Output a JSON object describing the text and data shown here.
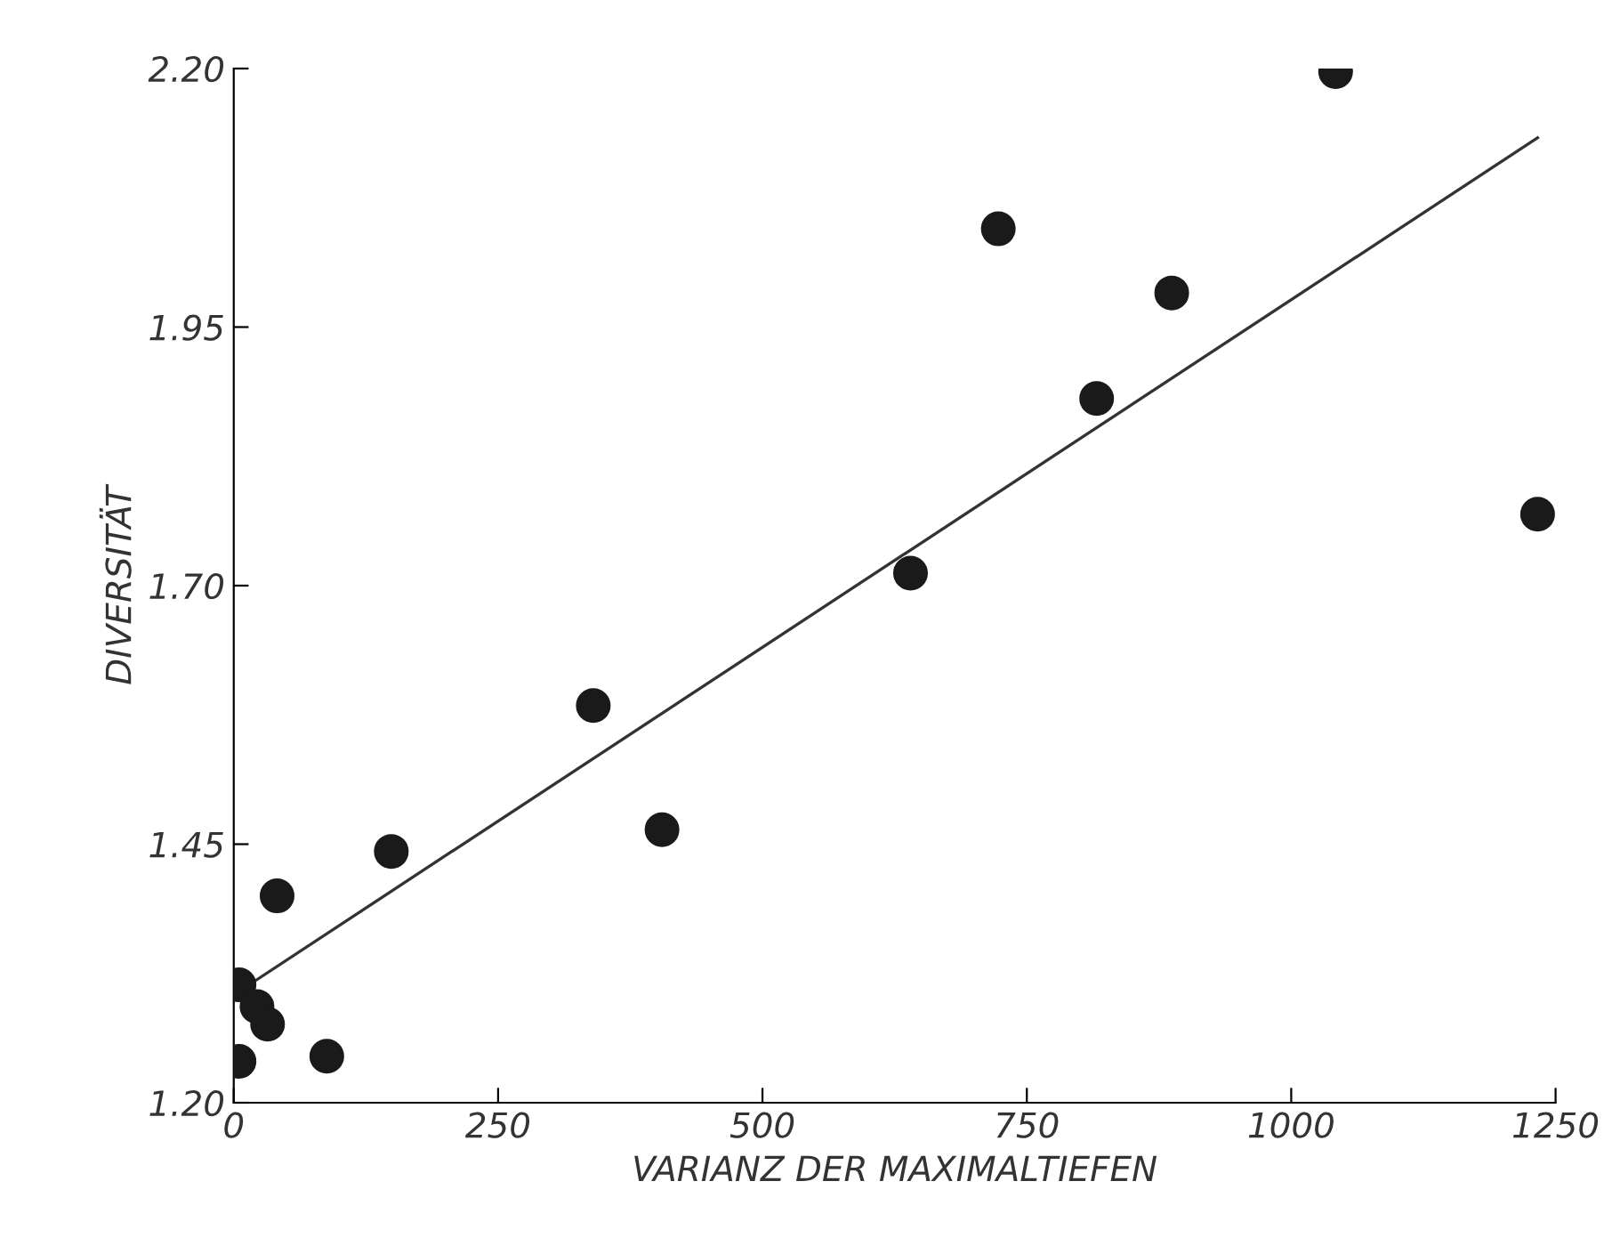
{
  "chart_data": {
    "type": "scatter",
    "xlabel": "VARIANZ DER MAXIMALTIEFEN",
    "ylabel": "DIVERSITÄT",
    "xlim": [
      0,
      1250
    ],
    "xticks": [
      0,
      250,
      500,
      750,
      1000,
      1250
    ],
    "ylim": [
      1.2,
      2.2
    ],
    "yticks": [
      {
        "value": 1.2,
        "label": "1.20"
      },
      {
        "value": 1.45,
        "label": "1.45"
      },
      {
        "value": 1.7,
        "label": "1.70"
      },
      {
        "value": 1.95,
        "label": "1.95"
      },
      {
        "value": 2.2,
        "label": "2.20"
      }
    ],
    "grid": false,
    "legend": false,
    "series": [
      {
        "marker": "circle",
        "color": "#1a1a1a",
        "x": [
          5,
          5,
          22,
          32,
          41,
          88,
          149,
          340,
          405,
          640,
          723,
          816,
          887,
          1042,
          1233
        ],
        "values": [
          1.24,
          1.314,
          1.293,
          1.276,
          1.4,
          1.245,
          1.443,
          1.584,
          1.464,
          1.712,
          2.045,
          1.881,
          1.983,
          2.197,
          1.769
        ]
      },
      {
        "type": "line",
        "color": "#333333",
        "x": [
          10,
          1233
        ],
        "values": [
          1.311,
          2.133
        ]
      }
    ]
  }
}
